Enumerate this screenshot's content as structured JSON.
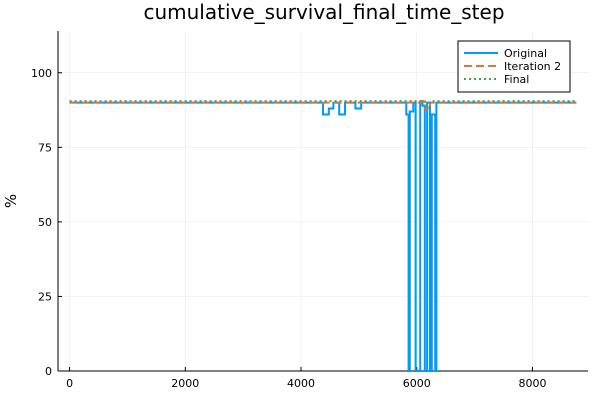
{
  "chart_data": {
    "type": "line",
    "title": "cumulative_survival_final_time_step",
    "xlabel": "",
    "ylabel": "%",
    "xlim": [
      -200,
      8960
    ],
    "ylim": [
      0,
      114
    ],
    "xticks": [
      0,
      2000,
      4000,
      6000,
      8000
    ],
    "yticks": [
      0,
      25,
      50,
      75,
      100
    ],
    "grid": true,
    "legend_position": "top-right",
    "series": [
      {
        "name": "Original",
        "color": "#009AFA",
        "style": "solid",
        "x": [
          0,
          4380,
          4380,
          4480,
          4480,
          4560,
          4560,
          4660,
          4660,
          4760,
          4760,
          4940,
          4940,
          5040,
          5040,
          5820,
          5820,
          5860,
          5860,
          5880,
          5880,
          5940,
          5940,
          5980,
          5980,
          6060,
          6060,
          6100,
          6100,
          6140,
          6140,
          6180,
          6180,
          6230,
          6230,
          6260,
          6260,
          6320,
          6320,
          6340,
          6340,
          8760
        ],
        "y": [
          90,
          90,
          86,
          86,
          88,
          88,
          90,
          90,
          86,
          86,
          90,
          90,
          88,
          88,
          90,
          90,
          86,
          86,
          0,
          0,
          87,
          87,
          90,
          90,
          0,
          0,
          90,
          90,
          89,
          89,
          0,
          0,
          90,
          90,
          0,
          0,
          86,
          86,
          0,
          0,
          90,
          90
        ]
      },
      {
        "name": "Iteration 2",
        "color": "#E26F46",
        "style": "dash",
        "x": [
          0,
          6060,
          6060,
          6140,
          6140,
          6230,
          6230,
          8760
        ],
        "y": [
          90,
          90,
          90.5,
          90.5,
          88,
          88,
          90,
          90
        ]
      },
      {
        "name": "Final",
        "color": "#3EA44E",
        "style": "dot",
        "x": [
          0,
          6060,
          6060,
          6140,
          6140,
          6230,
          6230,
          8760
        ],
        "y": [
          90.5,
          90.5,
          90.5,
          90.5,
          88.5,
          88.5,
          90.5,
          90.5
        ]
      }
    ]
  }
}
